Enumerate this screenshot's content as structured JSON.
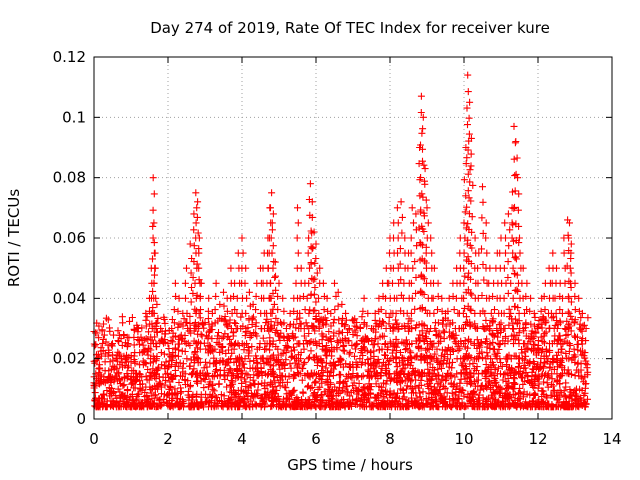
{
  "chart_data": {
    "type": "scatter",
    "title": "Day 274 of 2019, Rate Of TEC Index for receiver kure",
    "xlabel": "GPS time / hours",
    "ylabel": "ROTI / TECUs",
    "xlim": [
      0,
      14
    ],
    "ylim": [
      0,
      0.12
    ],
    "x_ticks": [
      0,
      2,
      4,
      6,
      8,
      10,
      12,
      14
    ],
    "x_tick_labels": [
      "0",
      "2",
      "4",
      "6",
      "8",
      "10",
      "12",
      "14"
    ],
    "y_ticks": [
      0,
      0.02,
      0.04,
      0.06,
      0.08,
      0.1,
      0.12
    ],
    "y_tick_labels": [
      "0",
      "0.02",
      "0.04",
      "0.06",
      "0.08",
      "0.1",
      "0.12"
    ],
    "grid": true,
    "marker": "+",
    "series": [
      {
        "name": "ROTI",
        "color": "#ff0000",
        "x": [
          0.0,
          0.05,
          0.1,
          0.15,
          0.2,
          0.3,
          0.4,
          0.5,
          0.6,
          0.7,
          0.8,
          0.9,
          1.0,
          1.1,
          1.2,
          1.3,
          1.4,
          1.5,
          1.55,
          1.6,
          1.62,
          1.65,
          1.7,
          1.8,
          1.9,
          2.0,
          2.1,
          2.2,
          2.3,
          2.4,
          2.5,
          2.6,
          2.7,
          2.75,
          2.8,
          2.85,
          2.9,
          3.0,
          3.1,
          3.2,
          3.3,
          3.4,
          3.5,
          3.6,
          3.7,
          3.8,
          3.9,
          4.0,
          4.1,
          4.2,
          4.3,
          4.4,
          4.5,
          4.6,
          4.7,
          4.75,
          4.8,
          4.85,
          4.9,
          5.0,
          5.1,
          5.2,
          5.3,
          5.4,
          5.5,
          5.6,
          5.7,
          5.8,
          5.85,
          5.9,
          5.95,
          6.0,
          6.1,
          6.2,
          6.3,
          6.4,
          6.5,
          6.6,
          6.7,
          6.8,
          6.9,
          7.0,
          7.1,
          7.2,
          7.3,
          7.4,
          7.5,
          7.6,
          7.7,
          7.8,
          7.9,
          8.0,
          8.1,
          8.2,
          8.3,
          8.4,
          8.5,
          8.6,
          8.7,
          8.8,
          8.85,
          8.9,
          8.95,
          9.0,
          9.1,
          9.2,
          9.3,
          9.4,
          9.5,
          9.6,
          9.7,
          9.8,
          9.9,
          10.0,
          10.05,
          10.1,
          10.15,
          10.2,
          10.3,
          10.4,
          10.5,
          10.6,
          10.7,
          10.8,
          10.9,
          11.0,
          11.1,
          11.2,
          11.3,
          11.35,
          11.4,
          11.45,
          11.5,
          11.6,
          11.7,
          11.8,
          11.9,
          12.0,
          12.1,
          12.2,
          12.3,
          12.4,
          12.5,
          12.6,
          12.7,
          12.8,
          12.85,
          12.9,
          13.0,
          13.1,
          13.2,
          13.3
        ],
        "y": [
          0.012,
          0.015,
          0.02,
          0.018,
          0.014,
          0.016,
          0.022,
          0.025,
          0.02,
          0.018,
          0.028,
          0.024,
          0.019,
          0.022,
          0.03,
          0.026,
          0.035,
          0.04,
          0.05,
          0.08,
          0.065,
          0.055,
          0.038,
          0.03,
          0.033,
          0.025,
          0.03,
          0.045,
          0.04,
          0.035,
          0.05,
          0.058,
          0.068,
          0.075,
          0.072,
          0.06,
          0.045,
          0.032,
          0.04,
          0.035,
          0.045,
          0.038,
          0.042,
          0.04,
          0.05,
          0.045,
          0.055,
          0.06,
          0.05,
          0.042,
          0.038,
          0.045,
          0.05,
          0.055,
          0.06,
          0.07,
          0.075,
          0.068,
          0.052,
          0.045,
          0.04,
          0.03,
          0.035,
          0.04,
          0.07,
          0.05,
          0.045,
          0.06,
          0.078,
          0.072,
          0.062,
          0.058,
          0.05,
          0.045,
          0.04,
          0.035,
          0.045,
          0.042,
          0.038,
          0.035,
          0.03,
          0.028,
          0.032,
          0.03,
          0.04,
          0.035,
          0.03,
          0.035,
          0.04,
          0.045,
          0.05,
          0.06,
          0.065,
          0.07,
          0.072,
          0.06,
          0.055,
          0.07,
          0.068,
          0.09,
          0.107,
          0.1,
          0.083,
          0.07,
          0.06,
          0.05,
          0.045,
          0.04,
          0.035,
          0.04,
          0.045,
          0.05,
          0.06,
          0.065,
          0.09,
          0.114,
          0.105,
          0.093,
          0.06,
          0.055,
          0.077,
          0.065,
          0.05,
          0.045,
          0.055,
          0.06,
          0.065,
          0.068,
          0.07,
          0.097,
          0.092,
          0.08,
          0.06,
          0.05,
          0.045,
          0.04,
          0.035,
          0.03,
          0.04,
          0.045,
          0.05,
          0.055,
          0.05,
          0.045,
          0.06,
          0.066,
          0.065,
          0.058,
          0.045,
          0.04,
          0.035,
          0.03
        ]
      }
    ]
  }
}
